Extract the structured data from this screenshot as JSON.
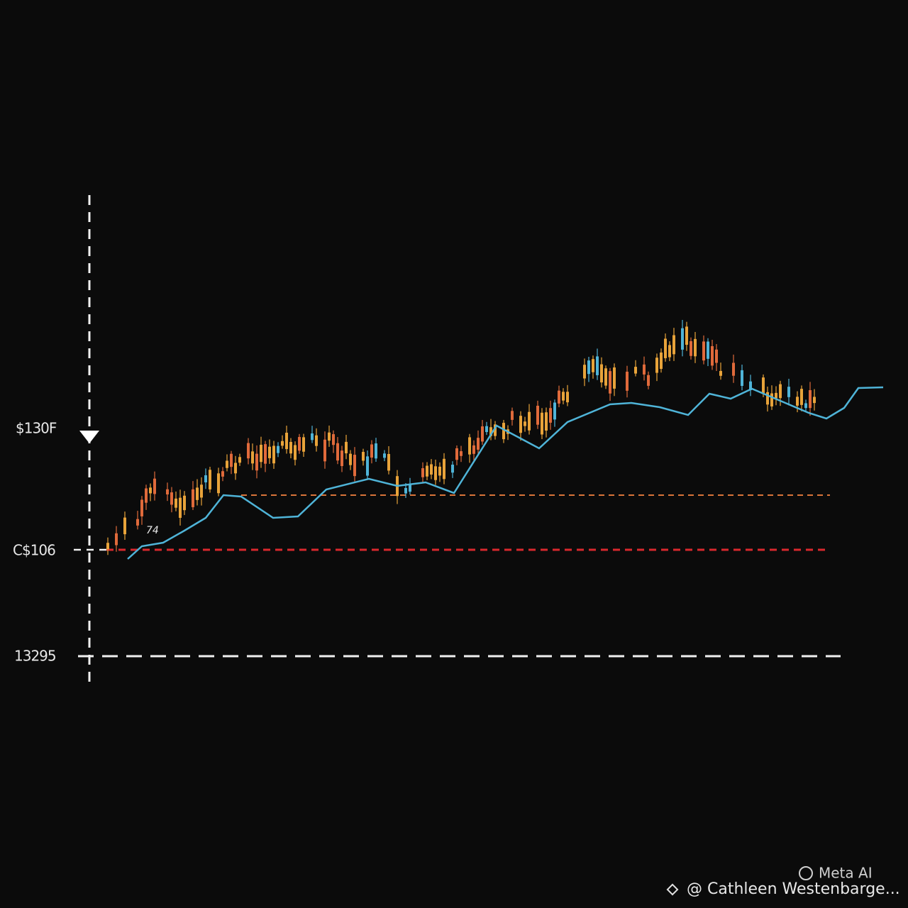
{
  "labels": {
    "price_top": "$130F",
    "price_mid": "C$106",
    "price_low": "13295",
    "marker": "74"
  },
  "watermark": {
    "brand": "Meta AI",
    "credit": "@ Cathleen Westenbarge..."
  }
}
